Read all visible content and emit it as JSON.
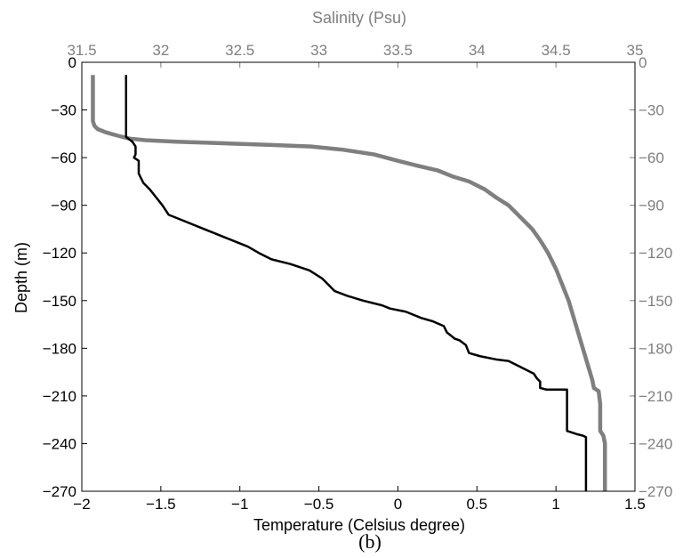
{
  "chart_data": {
    "type": "line",
    "caption": "(b)",
    "colors": {
      "temperature": "#000000",
      "salinity": "#7f7f7f",
      "top_axis": "#7f7f7f"
    },
    "x_bottom": {
      "label": "Temperature (Celsius degree)",
      "range": [
        -2,
        1.5
      ],
      "ticks": [
        -2,
        -1.5,
        -1,
        -0.5,
        0,
        0.5,
        1,
        1.5
      ],
      "tick_labels": [
        "−2",
        "−1.5",
        "−1",
        "−0.5",
        "0",
        "0.5",
        "1",
        "1.5"
      ]
    },
    "x_top": {
      "label": "Salinity (Psu)",
      "range": [
        31.5,
        35
      ],
      "ticks": [
        31.5,
        32,
        32.5,
        33,
        33.5,
        34,
        34.5,
        35
      ],
      "tick_labels": [
        "31.5",
        "32",
        "32.5",
        "33",
        "33.5",
        "34",
        "34.5",
        "35"
      ]
    },
    "y": {
      "label": "Depth (m)",
      "range": [
        -270,
        0
      ],
      "ticks": [
        0,
        -30,
        -60,
        -90,
        -120,
        -150,
        -180,
        -210,
        -240,
        -270
      ],
      "tick_labels_left": [
        "0",
        "−30",
        "−60",
        "−90",
        "−120",
        "−150",
        "−180",
        "−210",
        "−240",
        "−270"
      ],
      "tick_labels_right": [
        "0",
        "−30",
        "−60",
        "−90",
        "−120",
        "−150",
        "−180",
        "−210",
        "−240",
        "−270"
      ]
    },
    "series": [
      {
        "key": "temperature",
        "axis": "bottom",
        "points": [
          [
            -1.72,
            -8
          ],
          [
            -1.72,
            -47
          ],
          [
            -1.68,
            -50
          ],
          [
            -1.66,
            -53
          ],
          [
            -1.66,
            -58
          ],
          [
            -1.67,
            -60
          ],
          [
            -1.64,
            -62
          ],
          [
            -1.64,
            -70
          ],
          [
            -1.63,
            -72
          ],
          [
            -1.61,
            -76
          ],
          [
            -1.57,
            -80
          ],
          [
            -1.53,
            -85
          ],
          [
            -1.49,
            -90
          ],
          [
            -1.45,
            -96
          ],
          [
            -1.35,
            -100
          ],
          [
            -1.25,
            -104
          ],
          [
            -1.15,
            -108
          ],
          [
            -1.05,
            -112
          ],
          [
            -0.95,
            -116
          ],
          [
            -0.88,
            -120
          ],
          [
            -0.8,
            -124
          ],
          [
            -0.68,
            -127
          ],
          [
            -0.56,
            -131
          ],
          [
            -0.48,
            -136
          ],
          [
            -0.44,
            -140
          ],
          [
            -0.4,
            -144
          ],
          [
            -0.32,
            -147
          ],
          [
            -0.22,
            -150
          ],
          [
            -0.1,
            -153
          ],
          [
            -0.05,
            -155
          ],
          [
            0.05,
            -157
          ],
          [
            0.15,
            -161
          ],
          [
            0.22,
            -163
          ],
          [
            0.29,
            -166
          ],
          [
            0.31,
            -170
          ],
          [
            0.36,
            -174
          ],
          [
            0.39,
            -175
          ],
          [
            0.43,
            -178
          ],
          [
            0.45,
            -183
          ],
          [
            0.52,
            -185
          ],
          [
            0.62,
            -187
          ],
          [
            0.7,
            -188
          ],
          [
            0.78,
            -192
          ],
          [
            0.86,
            -196
          ],
          [
            0.88,
            -199
          ],
          [
            0.9,
            -201
          ],
          [
            0.9,
            -205
          ],
          [
            0.94,
            -206
          ],
          [
            1.07,
            -206
          ],
          [
            1.07,
            -232
          ],
          [
            1.1,
            -233
          ],
          [
            1.13,
            -234
          ],
          [
            1.17,
            -235
          ],
          [
            1.19,
            -236
          ],
          [
            1.19,
            -270
          ]
        ]
      },
      {
        "key": "salinity",
        "axis": "top",
        "points": [
          [
            31.57,
            -8
          ],
          [
            31.57,
            -37
          ],
          [
            31.58,
            -40
          ],
          [
            31.6,
            -42
          ],
          [
            31.65,
            -44
          ],
          [
            31.72,
            -46
          ],
          [
            31.8,
            -48
          ],
          [
            31.9,
            -49
          ],
          [
            32.1,
            -50
          ],
          [
            32.4,
            -51
          ],
          [
            32.7,
            -52
          ],
          [
            32.95,
            -53
          ],
          [
            33.15,
            -55
          ],
          [
            33.35,
            -58
          ],
          [
            33.5,
            -62
          ],
          [
            33.62,
            -65
          ],
          [
            33.75,
            -68
          ],
          [
            33.85,
            -72
          ],
          [
            33.95,
            -75
          ],
          [
            34.05,
            -80
          ],
          [
            34.12,
            -85
          ],
          [
            34.2,
            -90
          ],
          [
            34.28,
            -98
          ],
          [
            34.35,
            -105
          ],
          [
            34.4,
            -112
          ],
          [
            34.45,
            -120
          ],
          [
            34.5,
            -130
          ],
          [
            34.54,
            -140
          ],
          [
            34.58,
            -150
          ],
          [
            34.61,
            -160
          ],
          [
            34.64,
            -170
          ],
          [
            34.67,
            -180
          ],
          [
            34.7,
            -190
          ],
          [
            34.73,
            -200
          ],
          [
            34.74,
            -205
          ],
          [
            34.77,
            -207
          ],
          [
            34.78,
            -215
          ],
          [
            34.78,
            -232
          ],
          [
            34.8,
            -235
          ],
          [
            34.81,
            -240
          ],
          [
            34.81,
            -270
          ]
        ]
      }
    ]
  }
}
